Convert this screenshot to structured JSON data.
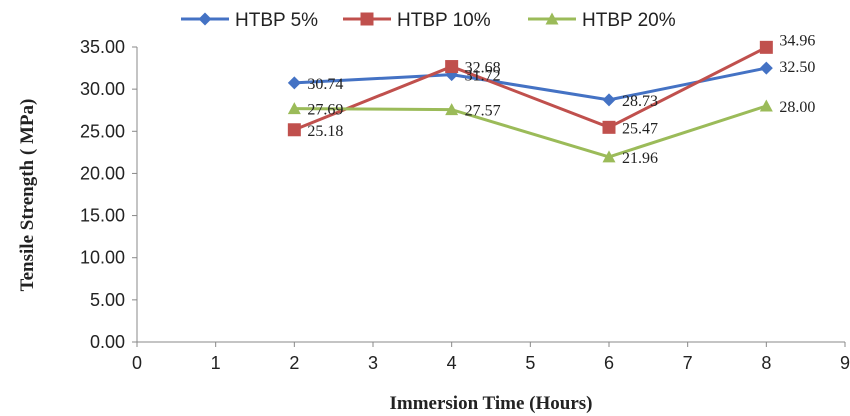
{
  "chart_data": {
    "type": "line",
    "title": "",
    "xlabel": "Immersion Time  (Hours)",
    "ylabel": "Tensile Strength ( MPa)",
    "xlim": [
      0,
      9
    ],
    "ylim": [
      0,
      35
    ],
    "x_ticks": [
      "0",
      "1",
      "2",
      "3",
      "4",
      "5",
      "6",
      "7",
      "8",
      "9"
    ],
    "y_ticks": [
      "0.00",
      "5.00",
      "10.00",
      "15.00",
      "20.00",
      "25.00",
      "30.00",
      "35.00"
    ],
    "grid": false,
    "legend_position": "top",
    "x": [
      2,
      4,
      6,
      8
    ],
    "series": [
      {
        "name": "HTBP  5%",
        "color": "#4472C4",
        "marker": "diamond",
        "values": [
          30.74,
          31.72,
          28.73,
          32.5
        ],
        "labels": [
          "30.74",
          "31.72",
          "28.73",
          "32.50"
        ]
      },
      {
        "name": "HTBP  10%",
        "color": "#C0504D",
        "marker": "square",
        "values": [
          25.18,
          32.68,
          25.47,
          34.96
        ],
        "labels": [
          "25.18",
          "32.68",
          "25.47",
          "34.96"
        ]
      },
      {
        "name": "HTBP  20%",
        "color": "#9BBB59",
        "marker": "triangle",
        "values": [
          27.69,
          27.57,
          21.96,
          28.0
        ],
        "labels": [
          "27.69",
          "27.57",
          "21.96",
          "28.00"
        ]
      }
    ]
  }
}
